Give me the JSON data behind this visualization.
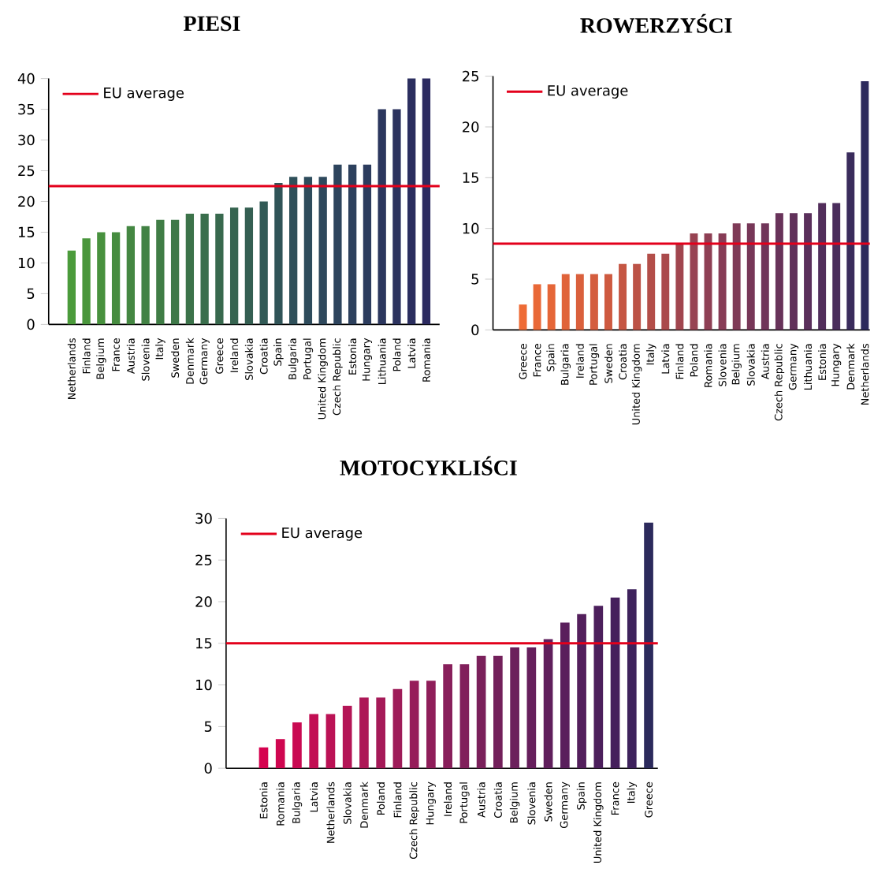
{
  "chart_data": [
    {
      "type": "bar",
      "title": "PIESI",
      "categories": [
        "Netherlands",
        "Finland",
        "Belgium",
        "France",
        "Austria",
        "Slovenia",
        "Italy",
        "Sweden",
        "Denmark",
        "Germany",
        "Greece",
        "Ireland",
        "Slovakia",
        "Croatia",
        "Spain",
        "Bulgaria",
        "Portugal",
        "United Kingdom",
        "Czech Republic",
        "Estonia",
        "Hungary",
        "Lithuania",
        "Poland",
        "Latvia",
        "Romania"
      ],
      "values": [
        12,
        14,
        15,
        15,
        16,
        16,
        17,
        17,
        18,
        18,
        18,
        19,
        19,
        20,
        23,
        24,
        24,
        24,
        26,
        26,
        26,
        35,
        35,
        40,
        40
      ],
      "colors": [
        "#4b9b3b",
        "#4a963c",
        "#48913e",
        "#468c40",
        "#448742",
        "#428244",
        "#407d46",
        "#3e7848",
        "#3c734a",
        "#3a6e4c",
        "#38694e",
        "#366450",
        "#345f52",
        "#325a56",
        "#305458",
        "#2f505a",
        "#2e4c5c",
        "#2e485c",
        "#2d445d",
        "#2d405d",
        "#2c3c5e",
        "#2c375e",
        "#2c335f",
        "#2b2e5f",
        "#2b2a60"
      ],
      "ylim": [
        0,
        40
      ],
      "yticks": [
        0,
        5,
        10,
        15,
        20,
        25,
        30,
        35,
        40
      ],
      "ref_lines": [
        {
          "axis": "y",
          "value": 22.5,
          "label": "EU average",
          "color": "#e3001b"
        }
      ],
      "legend": "top left"
    },
    {
      "type": "bar",
      "title": "ROWERZYŚCI",
      "categories": [
        "Greece",
        "France",
        "Spain",
        "Bulgaria",
        "Ireland",
        "Portugal",
        "Sweden",
        "Croatia",
        "United Kingdom",
        "Italy",
        "Latvia",
        "Finland",
        "Poland",
        "Romania",
        "Slovenia",
        "Belgium",
        "Slovakia",
        "Austria",
        "Czech Republic",
        "Germany",
        "Lithuania",
        "Estonia",
        "Hungary",
        "Denmark",
        "Netherlands"
      ],
      "values": [
        2.5,
        4.5,
        4.5,
        5.5,
        5.5,
        5.5,
        5.5,
        6.5,
        6.5,
        7.5,
        7.5,
        8.5,
        9.5,
        9.5,
        9.5,
        10.5,
        10.5,
        10.5,
        11.5,
        11.5,
        11.5,
        12.5,
        12.5,
        17.5,
        24.5
      ],
      "colors": [
        "#ee6b35",
        "#e96837",
        "#e56638",
        "#e0633a",
        "#da603c",
        "#d45d3e",
        "#ce5a40",
        "#c55643",
        "#bc5246",
        "#b34e49",
        "#aa4a4c",
        "#a1464f",
        "#974352",
        "#8e3f54",
        "#873c56",
        "#7f3a57",
        "#773758",
        "#703559",
        "#68335a",
        "#61315a",
        "#5a2f5b",
        "#522e5b",
        "#4a2d5c",
        "#3a2c5c",
        "#2c2a5c"
      ],
      "ylim": [
        0,
        25
      ],
      "yticks": [
        0,
        5,
        10,
        15,
        20,
        25
      ],
      "ref_lines": [
        {
          "axis": "y",
          "value": 8.5,
          "label": "EU average",
          "color": "#e3001b"
        }
      ],
      "legend": "top left"
    },
    {
      "type": "bar",
      "title": "MOTOCYKLIŚCI",
      "categories": [
        "Estonia",
        "Romania",
        "Bulgaria",
        "Latvia",
        "Netherlands",
        "Slovakia",
        "Denmark",
        "Poland",
        "Finland",
        "Czech Republic",
        "Hungary",
        "Ireland",
        "Portugal",
        "Austria",
        "Croatia",
        "Belgium",
        "Slovenia",
        "Sweden",
        "Germany",
        "Spain",
        "United Kingdom",
        "France",
        "Italy",
        "Greece"
      ],
      "values": [
        2.5,
        3.5,
        5.5,
        6.5,
        6.5,
        7.5,
        8.5,
        8.5,
        9.5,
        10.5,
        10.5,
        12.5,
        12.5,
        13.5,
        13.5,
        14.5,
        14.5,
        15.5,
        17.5,
        18.5,
        19.5,
        20.5,
        21.5,
        29.5
      ],
      "colors": [
        "#d5024f",
        "#cf0650",
        "#c90a52",
        "#c20e53",
        "#bb1255",
        "#b41556",
        "#ad1857",
        "#a51a58",
        "#9e1c59",
        "#961d5a",
        "#8f1e5a",
        "#881f5b",
        "#811f5b",
        "#7a205b",
        "#73205b",
        "#6c205c",
        "#661f5c",
        "#601f5c",
        "#5a1f5c",
        "#531f5c",
        "#4c1f5c",
        "#451f5c",
        "#3e225c",
        "#2c2a5c"
      ],
      "ylim": [
        0,
        30
      ],
      "yticks": [
        0,
        5,
        10,
        15,
        20,
        25,
        30
      ],
      "ref_lines": [
        {
          "axis": "y",
          "value": 15,
          "label": "EU average",
          "color": "#e3001b"
        }
      ],
      "legend": "top left"
    }
  ]
}
